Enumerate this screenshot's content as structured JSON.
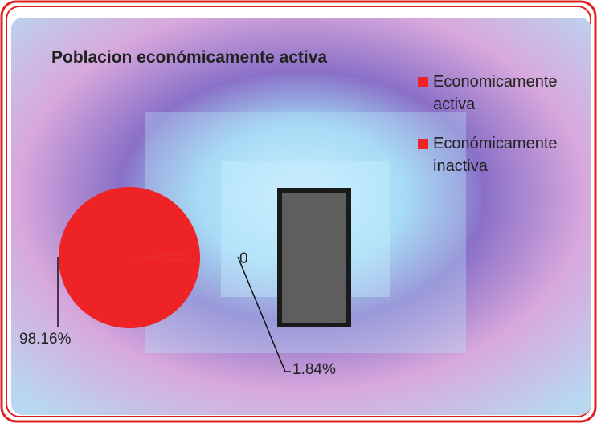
{
  "chart_data": {
    "type": "pie",
    "title": "Poblacion económicamente activa",
    "categories": [
      "Economicamente activa",
      "Económicamente inactiva"
    ],
    "values": [
      98.16,
      1.84
    ],
    "value_labels": [
      "98.16%",
      "1.84%"
    ],
    "colors": [
      "#ee2326",
      "#ee2326"
    ],
    "annotations": [
      "0"
    ],
    "legend": "top-right"
  }
}
